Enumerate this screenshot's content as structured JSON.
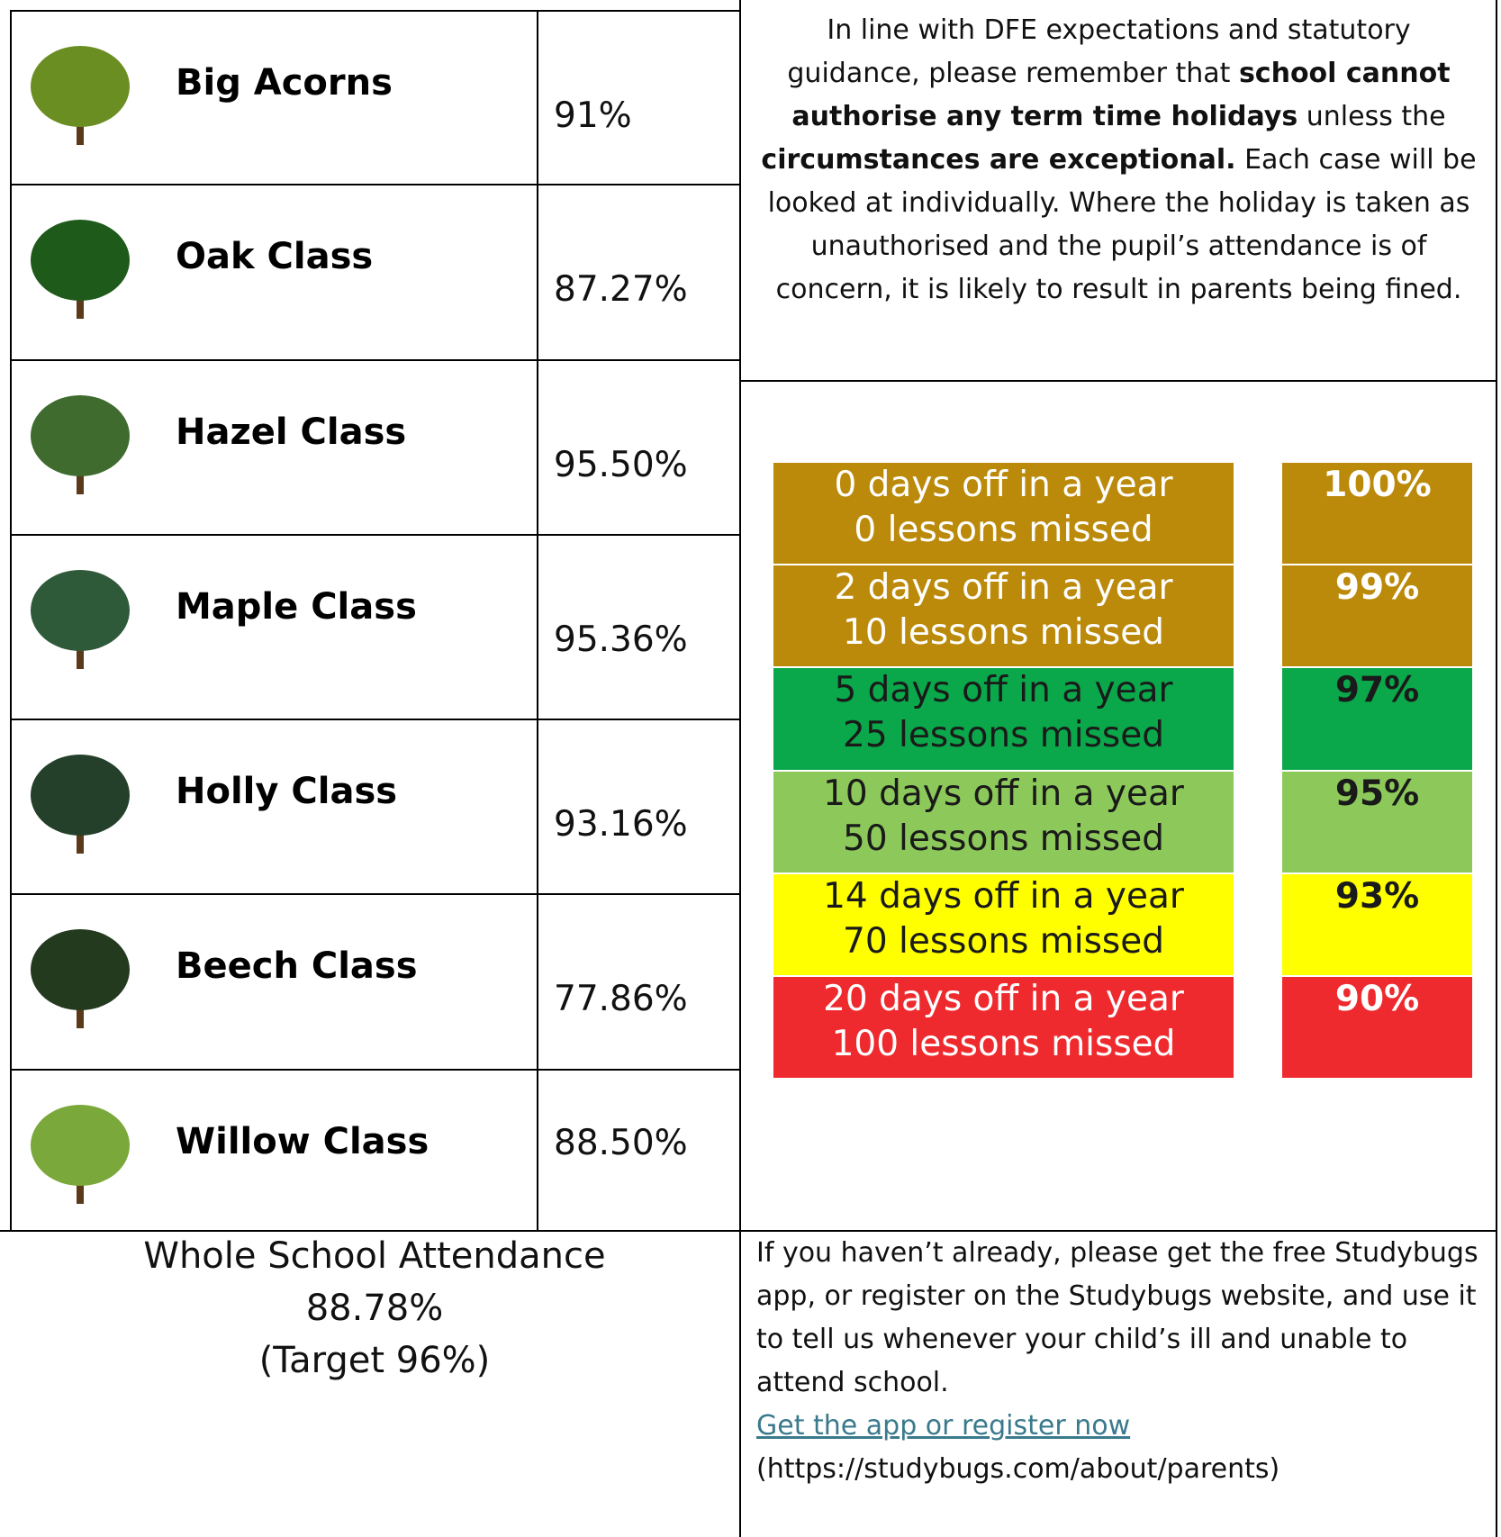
{
  "classes": [
    {
      "name": "Big Acorns",
      "attendance": "91%"
    },
    {
      "name": "Oak Class",
      "attendance": "87.27%"
    },
    {
      "name": "Hazel Class",
      "attendance": "95.50%"
    },
    {
      "name": "Maple Class",
      "attendance": "95.36%"
    },
    {
      "name": "Holly Class",
      "attendance": "93.16%"
    },
    {
      "name": "Beech Class",
      "attendance": "77.86%"
    },
    {
      "name": "Willow Class",
      "attendance": "88.50%"
    }
  ],
  "notice": [
    {
      "text": "In line with DFE expectations and statutory guidance, please remember that ",
      "bold": false
    },
    {
      "text": "school cannot authorise any term time holidays",
      "bold": true
    },
    {
      "text": " unless the ",
      "bold": false
    },
    {
      "text": "circumstances are exceptional.",
      "bold": true
    },
    {
      "text": " Each case will be looked at individually. Where the holiday is taken as unauthorised and the pupil’s attendance is of concern, it is likely to result in parents being fined.",
      "bold": false
    }
  ],
  "attendance_scale": [
    {
      "days": "0 days off in a year",
      "lessons": "0 lessons missed",
      "percent": "100%",
      "color": "#bb8a0a",
      "text_color": "#ffffff"
    },
    {
      "days": "2 days off in a year",
      "lessons": "10 lessons missed",
      "percent": "99%",
      "color": "#bb8a0a",
      "text_color": "#ffffff"
    },
    {
      "days": "5 days off in a year",
      "lessons": "25 lessons missed",
      "percent": "97%",
      "color": "#0aa84a",
      "text_color": "#1a1a1a"
    },
    {
      "days": "10 days off in a year",
      "lessons": "50 lessons missed",
      "percent": "95%",
      "color": "#8cc95a",
      "text_color": "#1a1a1a"
    },
    {
      "days": "14 days off in a year",
      "lessons": "70 lessons missed",
      "percent": "93%",
      "color": "#ffff00",
      "text_color": "#1a1a1a"
    },
    {
      "days": "20 days off in a year",
      "lessons": "100 lessons missed",
      "percent": "90%",
      "color": "#ee2a2e",
      "text_color": "#ffffff"
    }
  ],
  "whole_school": {
    "label": "Whole School Attendance",
    "value": "88.78%",
    "target": "(Target 96%)"
  },
  "studybugs": {
    "text": "If you haven’t already, please get the free Studybugs app, or register on the Studybugs website, and use it to tell us whenever your child’s ill and unable to attend school.",
    "link": "Get the app or register now",
    "url": "(https://studybugs.com/about/parents)"
  }
}
